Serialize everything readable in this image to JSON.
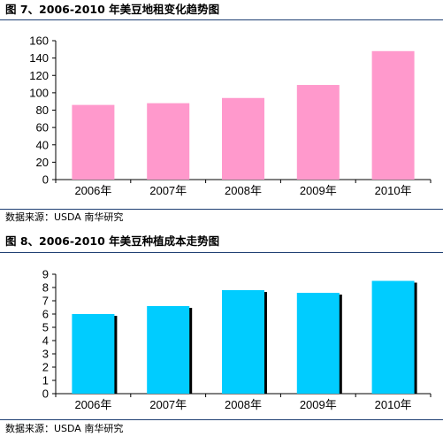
{
  "charts": [
    {
      "title": "图 7、2006-2010 年美豆地租变化趋势图",
      "source": "数据来源：USDA  南华研究",
      "chart_data": {
        "type": "bar",
        "categories": [
          "2006年",
          "2007年",
          "2008年",
          "2009年",
          "2010年"
        ],
        "values": [
          86,
          88,
          94,
          109,
          148
        ],
        "ylim": [
          0,
          160
        ],
        "yticks": [
          0,
          20,
          40,
          60,
          80,
          100,
          120,
          140,
          160
        ],
        "bar_color": "#ff99cc",
        "shadow": false,
        "grid": false
      }
    },
    {
      "title": "图 8、2006-2010 年美豆种植成本走势图",
      "source": "数据来源：USDA  南华研究",
      "chart_data": {
        "type": "bar",
        "categories": [
          "2006年",
          "2007年",
          "2008年",
          "2009年",
          "2010年"
        ],
        "values": [
          6.0,
          6.6,
          7.8,
          7.6,
          8.5
        ],
        "ylim": [
          0,
          9
        ],
        "yticks": [
          0,
          1,
          2,
          3,
          4,
          5,
          6,
          7,
          8,
          9
        ],
        "bar_color": "#00ccff",
        "shadow": true,
        "grid": false
      }
    }
  ]
}
